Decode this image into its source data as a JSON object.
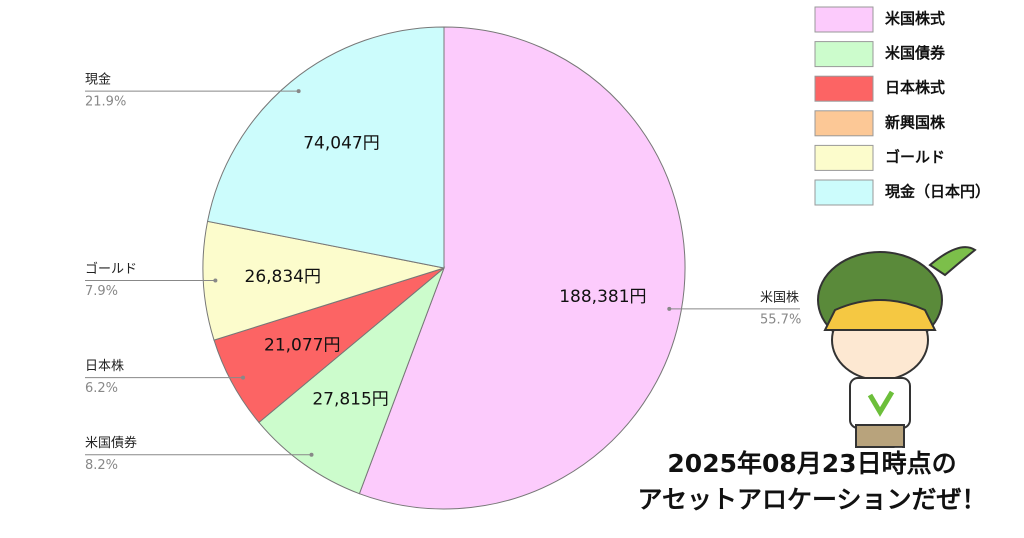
{
  "chart_data": {
    "type": "pie",
    "categories": [
      "米国株式",
      "米国債券",
      "日本株式",
      "新興国株",
      "ゴールド",
      "現金（日本円）"
    ],
    "values": [
      188381,
      27815,
      21077,
      0,
      26834,
      74047
    ],
    "value_labels": [
      "188,381円",
      "27,815円",
      "21,077円",
      null,
      "26,834円",
      "74,047円"
    ],
    "colors": [
      "#fccbfc",
      "#ccfccc",
      "#fc6464",
      "#fcc896",
      "#fcfccc",
      "#ccfcfc"
    ],
    "callout_names": [
      "米国株",
      "米国債券",
      "日本株",
      null,
      "ゴールド",
      "現金"
    ],
    "callout_percents": [
      {
        "value": 55.7,
        "label": "55.7%"
      },
      {
        "value": 8.2,
        "label": "8.2%"
      },
      {
        "value": 6.2,
        "label": "6.2%"
      },
      null,
      {
        "value": 7.9,
        "label": "7.9%"
      },
      {
        "value": 21.9,
        "label": "21.9%"
      }
    ],
    "annotation": [
      "2025年08月23日時点の",
      "アセットアロケーションだぜ！"
    ]
  }
}
